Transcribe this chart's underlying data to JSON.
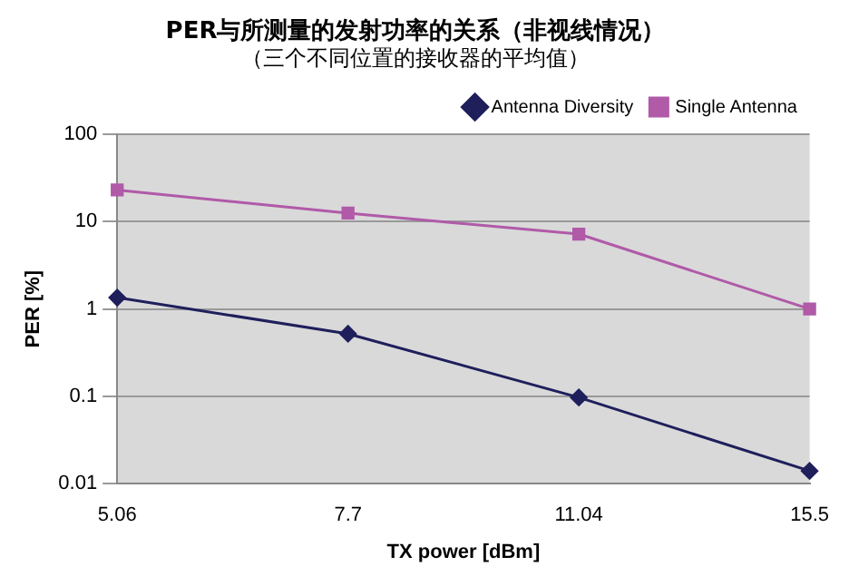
{
  "chart_data": {
    "type": "line",
    "title": "PER与所测量的发射功率的关系（非视线情况）",
    "subtitle": "（三个不同位置的接收器的平均值）",
    "xlabel": "TX power [dBm]",
    "ylabel": "PER [%]",
    "categories": [
      "5.06",
      "7.7",
      "11.04",
      "15.5"
    ],
    "series": [
      {
        "name": "Antenna Diversity",
        "color": "#1f1f5c",
        "marker": "diamond",
        "values": [
          1.35,
          0.52,
          0.097,
          0.014
        ]
      },
      {
        "name": "Single Antenna",
        "color": "#b05aa8",
        "marker": "square",
        "values": [
          23,
          12.5,
          7.2,
          1.0
        ]
      }
    ],
    "log": "y",
    "ylim": [
      0.01,
      100
    ],
    "yticks": [
      0.01,
      0.1,
      1,
      10,
      100
    ],
    "grid": "y",
    "legend": "top right",
    "line_style": "solid"
  }
}
